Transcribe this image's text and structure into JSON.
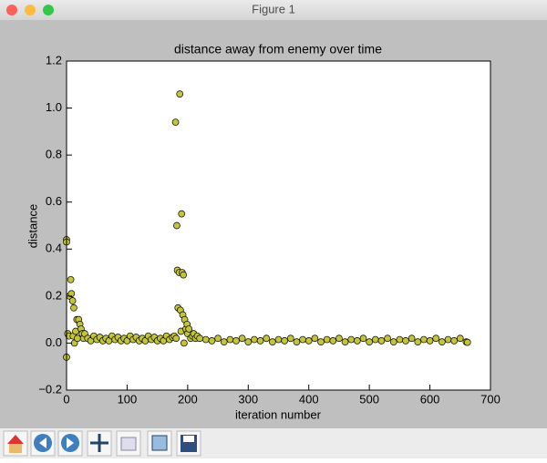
{
  "window": {
    "title": "Figure 1"
  },
  "chart_data": {
    "type": "scatter",
    "title": "distance away from enemy over time",
    "x_label": "iteration number",
    "y_label": "distance",
    "color": "#c4c43a",
    "edgecolor": "#000000",
    "xlim": [
      0,
      700
    ],
    "xticks": [
      0,
      100,
      200,
      300,
      400,
      500,
      600,
      700
    ],
    "ylim": [
      -0.2,
      1.2
    ],
    "yticks": [
      {
        "value": -0.2,
        "label": "−0.2"
      },
      {
        "value": 0,
        "label": "0.0"
      },
      0.2,
      0.4,
      0.6,
      0.8,
      {
        "value": 1,
        "label": "1.0"
      },
      1.2
    ],
    "x": [
      0,
      0,
      0,
      2,
      4,
      5,
      7,
      8,
      10,
      11,
      12,
      13,
      15,
      17,
      18,
      20,
      22,
      24,
      26,
      28,
      30,
      35,
      40,
      45,
      50,
      55,
      60,
      65,
      70,
      75,
      80,
      85,
      90,
      95,
      100,
      105,
      110,
      115,
      120,
      125,
      130,
      135,
      140,
      145,
      150,
      155,
      160,
      165,
      170,
      175,
      178,
      180,
      181,
      182,
      183,
      184,
      186,
      187,
      188,
      189,
      190,
      191,
      192,
      193,
      194,
      195,
      197,
      199,
      200,
      202,
      205,
      208,
      210,
      213,
      216,
      220,
      230,
      240,
      250,
      260,
      270,
      280,
      290,
      300,
      310,
      320,
      330,
      340,
      350,
      360,
      370,
      380,
      390,
      400,
      410,
      420,
      430,
      440,
      450,
      460,
      470,
      480,
      490,
      500,
      510,
      520,
      530,
      540,
      550,
      560,
      570,
      580,
      590,
      600,
      610,
      620,
      630,
      640,
      650,
      660,
      662
    ],
    "values": [
      0.44,
      0.43,
      -0.06,
      0.04,
      0.03,
      0.2,
      0.27,
      0.21,
      0.18,
      0.03,
      0.15,
      0.0,
      0.05,
      0.1,
      0.02,
      0.1,
      0.08,
      0.06,
      0.04,
      0.02,
      0.04,
      0.02,
      0.01,
      0.03,
      0.015,
      0.025,
      0.01,
      0.02,
      0.01,
      0.03,
      0.015,
      0.025,
      0.01,
      0.02,
      0.01,
      0.03,
      0.015,
      0.025,
      0.01,
      0.02,
      0.01,
      0.03,
      0.015,
      0.025,
      0.01,
      0.02,
      0.01,
      0.03,
      0.015,
      0.025,
      0.03,
      0.94,
      0.02,
      0.5,
      0.31,
      0.15,
      0.3,
      1.06,
      0.14,
      0.05,
      0.55,
      0.3,
      0.12,
      0.29,
      0.0,
      0.1,
      0.06,
      0.08,
      0.04,
      0.06,
      0.02,
      0.03,
      0.04,
      0.02,
      0.03,
      0.02,
      0.015,
      0.01,
      0.02,
      0.005,
      0.015,
      0.01,
      0.02,
      0.005,
      0.015,
      0.01,
      0.02,
      0.005,
      0.015,
      0.01,
      0.02,
      0.005,
      0.015,
      0.01,
      0.02,
      0.005,
      0.015,
      0.01,
      0.02,
      0.005,
      0.015,
      0.01,
      0.02,
      0.005,
      0.015,
      0.01,
      0.02,
      0.005,
      0.015,
      0.01,
      0.02,
      0.005,
      0.015,
      0.01,
      0.02,
      0.005,
      0.015,
      0.01,
      0.02,
      0.005,
      0.003
    ]
  }
}
